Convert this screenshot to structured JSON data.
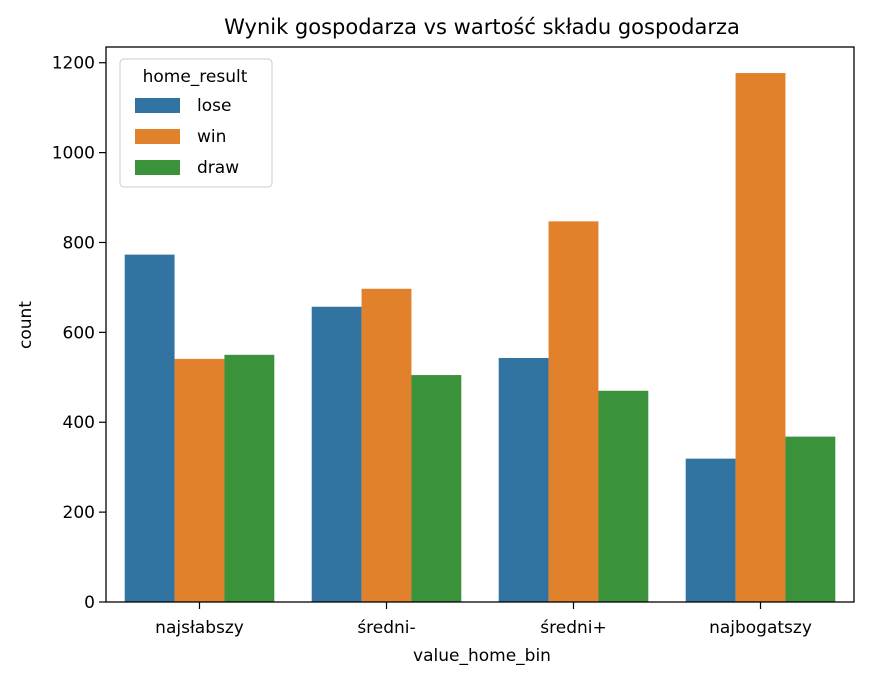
{
  "chart_data": {
    "type": "bar",
    "title": "Wynik gospodarza vs wartość składu gospodarza",
    "xlabel": "value_home_bin",
    "ylabel": "count",
    "categories": [
      "najsłabszy",
      "średni-",
      "średni+",
      "najbogatszy"
    ],
    "series": [
      {
        "name": "lose",
        "color": "#3274a1",
        "values": [
          773,
          657,
          543,
          319
        ]
      },
      {
        "name": "win",
        "color": "#e1812c",
        "values": [
          541,
          697,
          847,
          1177
        ]
      },
      {
        "name": "draw",
        "color": "#3a923a",
        "values": [
          550,
          505,
          470,
          368
        ]
      }
    ],
    "ylim": [
      0,
      1235
    ],
    "yticks": [
      0,
      200,
      400,
      600,
      800,
      1000,
      1200
    ],
    "legend": {
      "title": "home_result",
      "position": "top-left"
    },
    "grid": false
  }
}
